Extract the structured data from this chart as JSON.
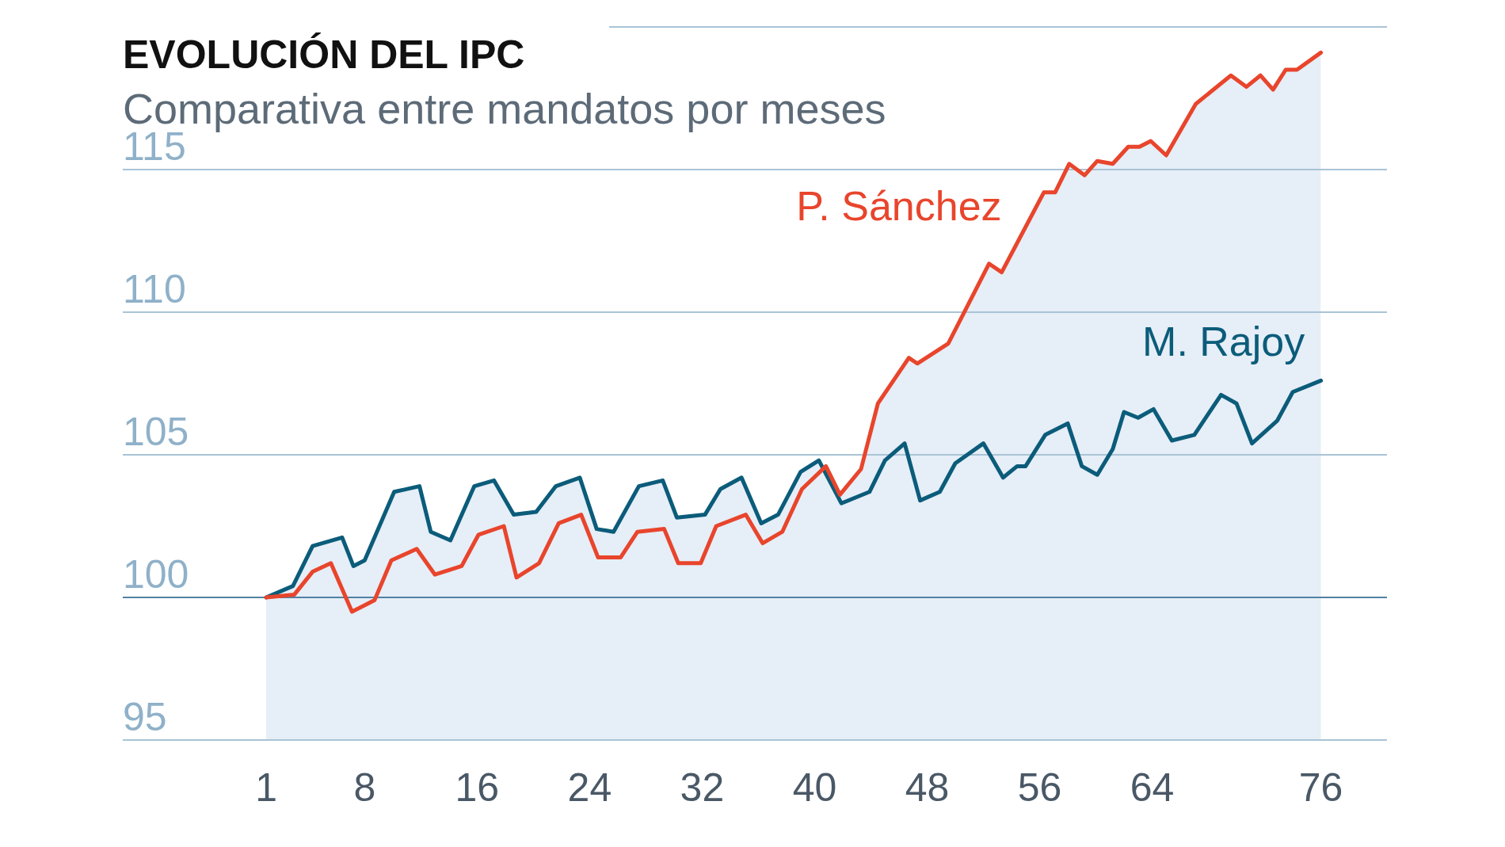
{
  "chart_data": {
    "type": "area",
    "title": "EVOLUCIÓN DEL IPC",
    "subtitle": "Comparativa entre mandatos por meses",
    "xlim": [
      -9.2,
      80.7
    ],
    "xticks": [
      1,
      8,
      16,
      24,
      32,
      40,
      48,
      56,
      64,
      76
    ],
    "ylim": [
      95,
      120
    ],
    "yticks": [
      95,
      100,
      105,
      110,
      115,
      {
        "value": 120,
        "label": null
      }
    ],
    "grid": "y",
    "legend": false,
    "marker": "none",
    "line_style": "solid",
    "ref_lines": [
      {
        "axis": "y",
        "value": 100,
        "color": "#4f82a3"
      }
    ],
    "series": [
      {
        "name": "P. Sánchez",
        "color": "#e8452c",
        "x": [
          1,
          3,
          4.3,
          5.6,
          7.1,
          8.7,
          9.9,
          11.7,
          13.0,
          14.9,
          16.1,
          17.9,
          18.8,
          20.4,
          21.8,
          23.4,
          24.6,
          26.2,
          27.4,
          29.3,
          30.3,
          31.9,
          33.0,
          35.1,
          36.3,
          37.7,
          39.1,
          40.8,
          41.8,
          43.3,
          44.5,
          46.7,
          47.3,
          49.5,
          52.4,
          53.3,
          56.3,
          57.1,
          58.1,
          59.2,
          60.1,
          61.2,
          62.3,
          63.1,
          63.9,
          65.0,
          67.1,
          69.6,
          70.7,
          71.7,
          72.6,
          73.5,
          74.3,
          76
        ],
        "values": [
          100,
          100.1,
          100.9,
          101.2,
          99.5,
          99.9,
          101.3,
          101.7,
          100.8,
          101.1,
          102.2,
          102.5,
          100.7,
          101.2,
          102.6,
          102.9,
          101.4,
          101.4,
          102.3,
          102.4,
          101.2,
          101.2,
          102.5,
          102.9,
          101.9,
          102.3,
          103.8,
          104.6,
          103.6,
          104.5,
          106.8,
          108.4,
          108.2,
          108.9,
          111.7,
          111.4,
          114.2,
          114.2,
          115.2,
          114.8,
          115.3,
          115.2,
          115.8,
          115.8,
          116.0,
          115.5,
          117.3,
          118.3,
          117.9,
          118.3,
          117.8,
          118.5,
          118.5,
          119.1
        ]
      },
      {
        "name": "M. Rajoy",
        "color": "#0b5c7a",
        "x": [
          1,
          2.9,
          4.3,
          6.4,
          7.2,
          8.0,
          10.1,
          11.9,
          12.7,
          14.1,
          15.8,
          17.2,
          18.6,
          20.2,
          21.6,
          23.3,
          24.5,
          25.7,
          27.5,
          29.2,
          30.2,
          32.2,
          33.3,
          34.8,
          36.2,
          37.4,
          39.0,
          40.3,
          41.9,
          43.9,
          45.0,
          46.4,
          47.5,
          48.9,
          50.0,
          52.0,
          53.4,
          54.4,
          55.0,
          56.4,
          58.0,
          59.0,
          60.1,
          61.2,
          62.0,
          63.0,
          64.1,
          65.4,
          67.0,
          68.9,
          70.0,
          71.1,
          72.9,
          74.0,
          76
        ],
        "values": [
          100,
          100.4,
          101.8,
          102.1,
          101.1,
          101.3,
          103.7,
          103.9,
          102.3,
          102.0,
          103.9,
          104.1,
          102.9,
          103.0,
          103.9,
          104.2,
          102.4,
          102.3,
          103.9,
          104.1,
          102.8,
          102.9,
          103.8,
          104.2,
          102.6,
          102.9,
          104.4,
          104.8,
          103.3,
          103.7,
          104.8,
          105.4,
          103.4,
          103.7,
          104.7,
          105.4,
          104.2,
          104.6,
          104.6,
          105.7,
          106.1,
          104.6,
          104.3,
          105.2,
          106.5,
          106.3,
          106.6,
          105.5,
          105.7,
          107.1,
          106.8,
          105.4,
          106.2,
          107.2,
          107.6
        ]
      }
    ]
  }
}
